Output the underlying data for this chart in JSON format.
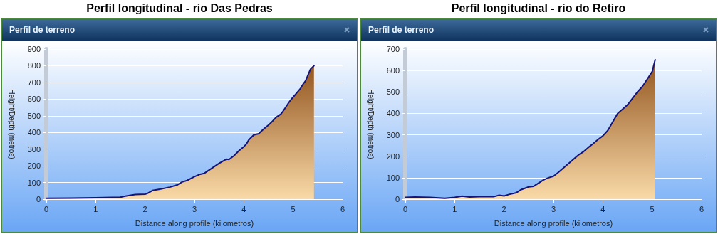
{
  "chart_data": [
    {
      "type": "area",
      "title": "Perfil longitudinal - rio Das Pedras",
      "subtitle": "Perfil de terreno",
      "xlabel": "Distance along profile (kilometros)",
      "ylabel": "Height/Depth (metros)",
      "xlim": [
        0,
        6
      ],
      "xticks": [
        0,
        1,
        2,
        3,
        4,
        5,
        6
      ],
      "ylim": [
        0,
        900
      ],
      "yticks": [
        0,
        100,
        200,
        300,
        400,
        500,
        600,
        700,
        800,
        900
      ],
      "grid": "y",
      "marker": "none",
      "line_style": "solid",
      "series": [
        {
          "color": "#14147a",
          "x": [
            0,
            0.5,
            1.0,
            1.5,
            1.6,
            1.8,
            2.0,
            2.05,
            2.15,
            2.3,
            2.5,
            2.65,
            2.75,
            2.85,
            3.0,
            3.1,
            3.2,
            3.35,
            3.5,
            3.65,
            3.7,
            3.8,
            3.9,
            4.0,
            4.05,
            4.1,
            4.2,
            4.3,
            4.4,
            4.5,
            4.55,
            4.65,
            4.75,
            4.8,
            4.9,
            4.95,
            5.05,
            5.15,
            5.2,
            5.25,
            5.3,
            5.35,
            5.42
          ],
          "values": [
            5,
            6,
            8,
            12,
            18,
            28,
            30,
            35,
            52,
            60,
            72,
            85,
            103,
            112,
            135,
            148,
            155,
            185,
            215,
            240,
            238,
            260,
            290,
            315,
            330,
            355,
            385,
            392,
            420,
            445,
            458,
            490,
            510,
            530,
            575,
            595,
            630,
            665,
            690,
            710,
            745,
            780,
            800
          ]
        }
      ]
    },
    {
      "type": "area",
      "title": "Perfil longitudinal - rio do Retiro",
      "subtitle": "Perfil de terreno",
      "xlabel": "Distance along profile (kilometros)",
      "ylabel": "Height/Depth (metros)",
      "xlim": [
        0,
        6
      ],
      "xticks": [
        0,
        1,
        2,
        3,
        4,
        5,
        6
      ],
      "ylim": [
        0,
        700
      ],
      "yticks": [
        0,
        100,
        200,
        300,
        400,
        500,
        600,
        700
      ],
      "grid": "y",
      "marker": "none",
      "line_style": "solid",
      "series": [
        {
          "color": "#14147a",
          "x": [
            0,
            0.2,
            0.5,
            0.8,
            1.0,
            1.15,
            1.3,
            1.5,
            1.8,
            1.9,
            2.0,
            2.1,
            2.25,
            2.35,
            2.5,
            2.6,
            2.7,
            2.8,
            2.9,
            3.0,
            3.1,
            3.2,
            3.3,
            3.4,
            3.5,
            3.6,
            3.7,
            3.8,
            3.9,
            4.0,
            4.1,
            4.2,
            4.3,
            4.4,
            4.5,
            4.6,
            4.7,
            4.8,
            4.9,
            5.0,
            5.06
          ],
          "values": [
            8,
            10,
            8,
            4,
            8,
            14,
            10,
            12,
            12,
            18,
            15,
            22,
            30,
            45,
            57,
            60,
            75,
            90,
            100,
            107,
            125,
            145,
            165,
            185,
            205,
            220,
            240,
            258,
            278,
            295,
            320,
            360,
            400,
            420,
            440,
            470,
            500,
            525,
            560,
            595,
            650
          ]
        }
      ]
    }
  ]
}
